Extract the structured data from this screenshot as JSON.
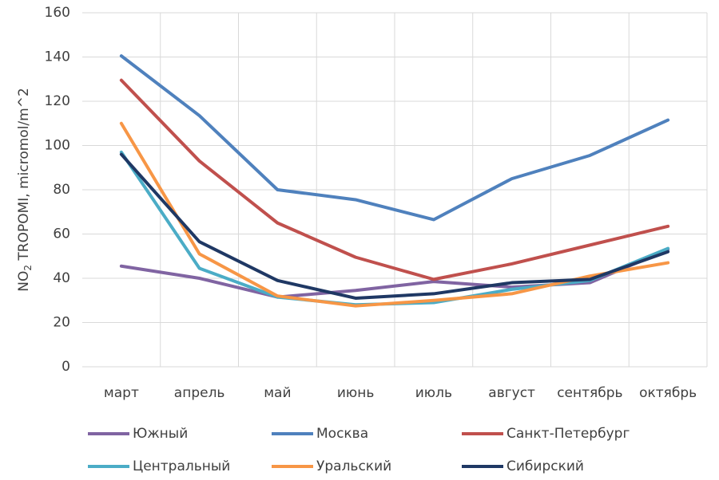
{
  "chart_data": {
    "type": "line",
    "ylabel": [
      "NO",
      "2",
      " TROPOMI, micromol/m^2"
    ],
    "categories": [
      "март",
      "апрель",
      "май",
      "июнь",
      "июль",
      "август",
      "сентябрь",
      "октябрь"
    ],
    "series": [
      {
        "name": "Южный",
        "color": "#8064a2",
        "values": [
          45.5,
          40,
          31.5,
          34.5,
          38.5,
          36,
          38,
          53
        ]
      },
      {
        "name": "Москва",
        "color": "#4f81bd",
        "values": [
          140.5,
          113.5,
          80,
          75.5,
          66.5,
          85,
          95.5,
          111.5
        ]
      },
      {
        "name": "Санкт-Петербург",
        "color": "#c0504d",
        "values": [
          129.5,
          93,
          65,
          49.5,
          39.5,
          46.5,
          55,
          63.5
        ]
      },
      {
        "name": "Центральный",
        "color": "#4bacc6",
        "values": [
          97,
          44.5,
          31.5,
          28,
          29,
          35,
          39,
          53.5
        ]
      },
      {
        "name": "Уральский",
        "color": "#f79646",
        "values": [
          110,
          51,
          32,
          27.5,
          30,
          33,
          41,
          47
        ]
      },
      {
        "name": "Сибирский",
        "color": "#1f3864",
        "values": [
          96,
          56.5,
          39,
          31,
          33,
          38,
          39.5,
          52
        ]
      }
    ],
    "ylim": [
      0,
      160
    ],
    "yticks": [
      0,
      20,
      40,
      60,
      80,
      100,
      120,
      140,
      160
    ],
    "grid": true
  }
}
